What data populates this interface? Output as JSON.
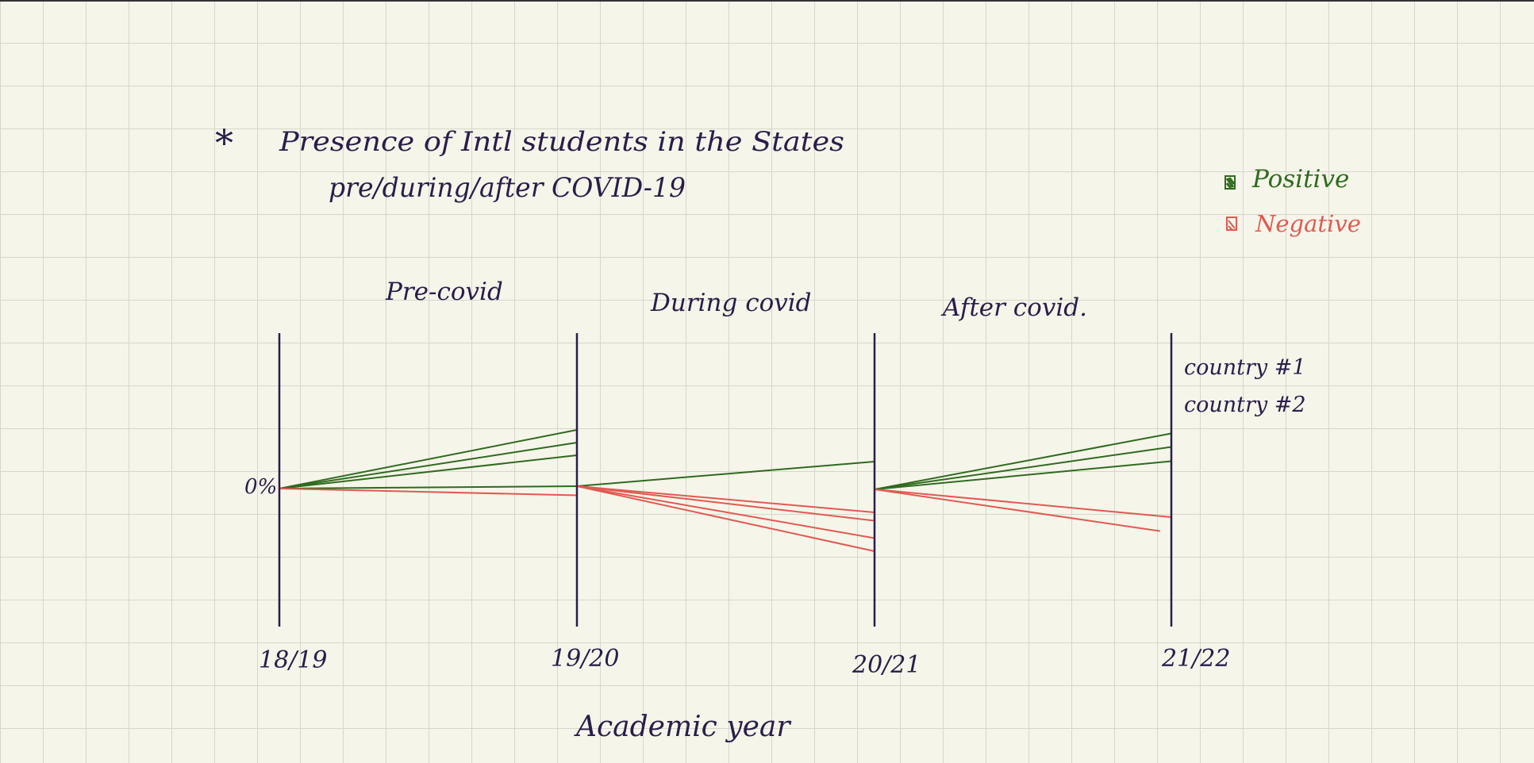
{
  "title": {
    "bullet": "*",
    "line1": "Presence of Intl students in the States",
    "line2": "pre/during/after COVID-19"
  },
  "legend": [
    {
      "label": "Positive",
      "color": "#2e6b1e"
    },
    {
      "label": "Negative",
      "color": "#e05a52"
    }
  ],
  "period_labels": [
    "Pre-covid",
    "During covid",
    "After covid."
  ],
  "x_axis": {
    "label": "Academic year",
    "ticks": [
      "18/19",
      "19/20",
      "20/21",
      "21/22"
    ]
  },
  "zero_label": "0%",
  "country_labels": [
    "country #1",
    "country #2"
  ],
  "colors": {
    "axis": "#2a1d4a",
    "positive": "#2e6b1e",
    "negative": "#e05a52",
    "ink": "#2a1d4a"
  },
  "chart_data": {
    "type": "line",
    "note_scale": "relative change, unitless; 0 = baseline at 0%",
    "segments": [
      {
        "from": 0,
        "to": 1,
        "start": 0,
        "end": 1.48,
        "sign": "positive"
      },
      {
        "from": 0,
        "to": 1,
        "start": 0,
        "end": 1.16,
        "sign": "positive"
      },
      {
        "from": 0,
        "to": 1,
        "start": 0,
        "end": 0.84,
        "sign": "positive"
      },
      {
        "from": 0,
        "to": 1,
        "start": 0,
        "end": 0.06,
        "sign": "positive"
      },
      {
        "from": 0,
        "to": 1,
        "start": 0,
        "end": -0.17,
        "sign": "negative"
      },
      {
        "from": 1,
        "to": 2,
        "start": 0.06,
        "end": 0.68,
        "sign": "positive"
      },
      {
        "from": 1,
        "to": 2,
        "start": 0.06,
        "end": -0.6,
        "sign": "negative"
      },
      {
        "from": 1,
        "to": 2,
        "start": 0.06,
        "end": -0.81,
        "sign": "negative"
      },
      {
        "from": 1,
        "to": 2,
        "start": 0.06,
        "end": -1.25,
        "sign": "negative"
      },
      {
        "from": 1,
        "to": 2,
        "start": 0.06,
        "end": -1.58,
        "sign": "negative"
      },
      {
        "from": 2,
        "to": 3,
        "start": -0.02,
        "end": 1.39,
        "sign": "positive"
      },
      {
        "from": 2,
        "to": 3,
        "start": -0.02,
        "end": 1.05,
        "sign": "positive"
      },
      {
        "from": 2,
        "to": 3,
        "start": -0.02,
        "end": 0.69,
        "sign": "positive"
      },
      {
        "from": 2,
        "to": 3,
        "start": -0.02,
        "end": -0.72,
        "sign": "negative"
      },
      {
        "from": 2,
        "to": 3,
        "start": -0.02,
        "end": -1.07,
        "sign": "negative",
        "end_at": 0.96
      }
    ]
  }
}
